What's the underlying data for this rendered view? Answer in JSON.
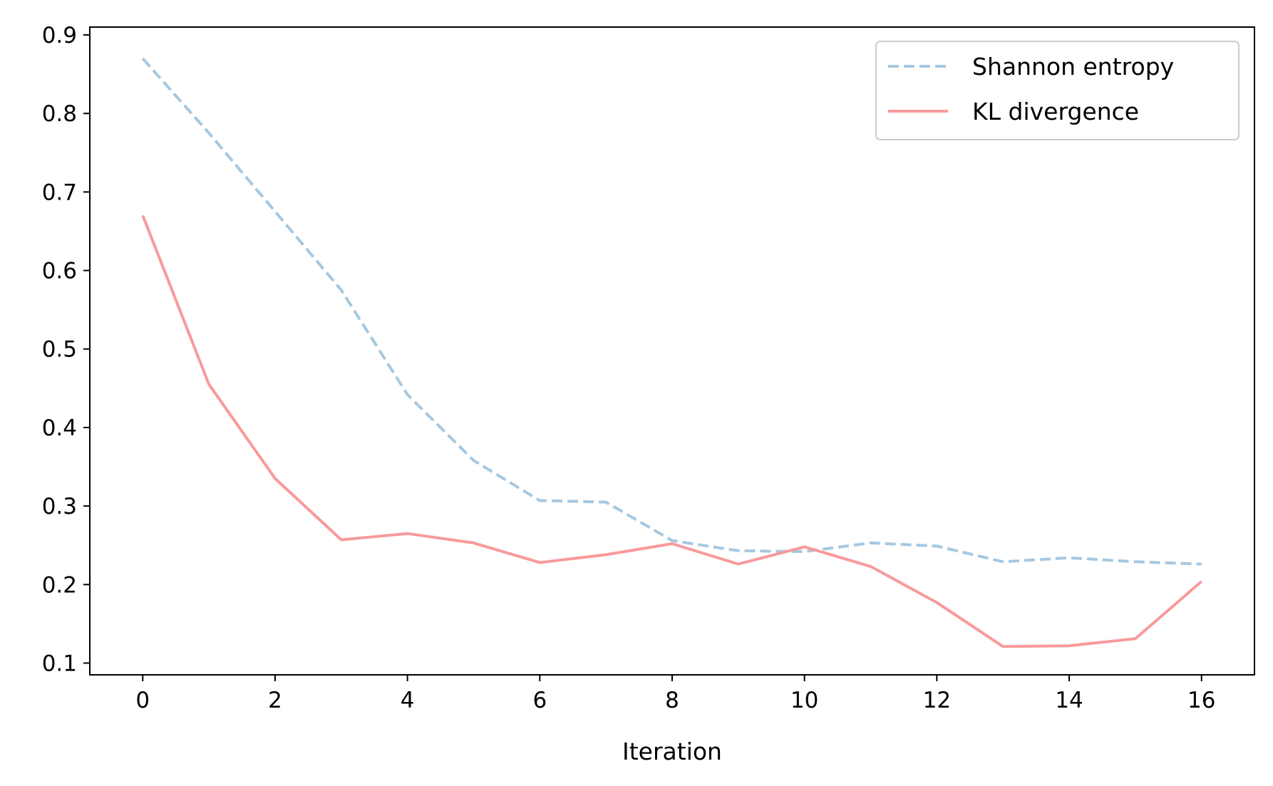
{
  "chart_data": {
    "type": "line",
    "title": "",
    "xlabel": "Iteration",
    "ylabel": "",
    "xlim": [
      -0.8,
      16.8
    ],
    "ylim": [
      0.085,
      0.91
    ],
    "x_ticks": [
      0,
      2,
      4,
      6,
      8,
      10,
      12,
      14,
      16
    ],
    "y_ticks": [
      0.1,
      0.2,
      0.3,
      0.4,
      0.5,
      0.6,
      0.7,
      0.8,
      0.9
    ],
    "x_tick_labels": [
      "0",
      "2",
      "4",
      "6",
      "8",
      "10",
      "12",
      "14",
      "16"
    ],
    "y_tick_labels": [
      "0.1",
      "0.2",
      "0.3",
      "0.4",
      "0.5",
      "0.6",
      "0.7",
      "0.8",
      "0.9"
    ],
    "grid": false,
    "legend_position": "top-right",
    "x": [
      0,
      1,
      2,
      3,
      4,
      5,
      6,
      7,
      8,
      9,
      10,
      11,
      12,
      13,
      14,
      15,
      16
    ],
    "series": [
      {
        "name": "Shannon entropy",
        "color": "#a6c8e0",
        "dash": "dashed",
        "values": [
          0.87,
          0.775,
          0.675,
          0.575,
          0.442,
          0.358,
          0.307,
          0.305,
          0.256,
          0.243,
          0.242,
          0.253,
          0.249,
          0.229,
          0.234,
          0.229,
          0.226
        ]
      },
      {
        "name": "KL divergence",
        "color": "#f89a9b",
        "dash": "solid",
        "values": [
          0.67,
          0.455,
          0.335,
          0.257,
          0.265,
          0.253,
          0.228,
          0.238,
          0.252,
          0.226,
          0.248,
          0.223,
          0.177,
          0.121,
          0.122,
          0.131,
          0.204
        ]
      }
    ]
  }
}
